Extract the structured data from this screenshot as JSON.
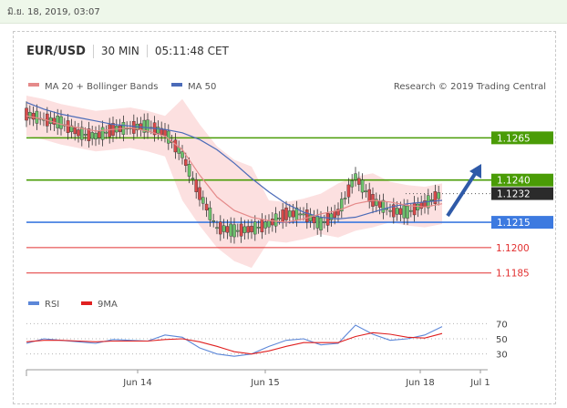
{
  "top_date": "มิ.ย. 18, 2019, 03:07",
  "header": {
    "symbol": "EUR/USD",
    "interval": "30 MIN",
    "time": "05:11:48 CET"
  },
  "legend": {
    "ma": "MA 20 + Bollinger Bands",
    "ma50": "MA 50",
    "credit": "Research © 2019 Trading Central"
  },
  "colors": {
    "green": "#4a9c06",
    "blue": "#3d7ae0",
    "red": "#e23030",
    "dark": "#2b2b2b",
    "ma50": "#4b6bb8",
    "ma20": "#e58a8a",
    "band": "#fbdada",
    "arrow": "#2f5aa8"
  },
  "levels": [
    {
      "value": 1.1265,
      "label": "1.1265",
      "kind": "green"
    },
    {
      "value": 1.124,
      "label": "1.1240",
      "kind": "green"
    },
    {
      "value": 1.1232,
      "label": "1.1232",
      "kind": "dark"
    },
    {
      "value": 1.1215,
      "label": "1.1215",
      "kind": "blue"
    },
    {
      "value": 1.12,
      "label": "1.1200",
      "kind": "red"
    },
    {
      "value": 1.1185,
      "label": "1.1185",
      "kind": "red"
    }
  ],
  "chart_data": {
    "type": "line",
    "title": "EUR/USD",
    "x_ticks": [
      "Jun 14",
      "Jun 15",
      "Jun 18",
      "Jul 1"
    ],
    "price_ylim": [
      1.118,
      1.129
    ],
    "series": [
      {
        "name": "MA 50",
        "values": [
          1.1286,
          1.1282,
          1.1279,
          1.1277,
          1.1275,
          1.1273,
          1.1272,
          1.1271,
          1.127,
          1.1268,
          1.1264,
          1.1258,
          1.125,
          1.1241,
          1.1233,
          1.1226,
          1.1221,
          1.1218,
          1.1217,
          1.1218,
          1.1221,
          1.1224,
          1.1226,
          1.1227,
          1.1228
        ]
      },
      {
        "name": "MA 20 + Bollinger Bands",
        "values": [
          1.1278,
          1.1276,
          1.1273,
          1.1271,
          1.1269,
          1.127,
          1.1271,
          1.1269,
          1.1266,
          1.1258,
          1.1243,
          1.123,
          1.1222,
          1.1218,
          1.1216,
          1.1215,
          1.1217,
          1.122,
          1.1222,
          1.1226,
          1.1228,
          1.1227,
          1.1225,
          1.1224,
          1.1226
        ]
      }
    ],
    "price_close": [
      1.1279,
      1.1276,
      1.1274,
      1.1268,
      1.1266,
      1.127,
      1.1271,
      1.1272,
      1.1268,
      1.1255,
      1.1232,
      1.1212,
      1.121,
      1.1211,
      1.1214,
      1.122,
      1.122,
      1.1214,
      1.1221,
      1.1242,
      1.1228,
      1.1222,
      1.1221,
      1.1226,
      1.1232
    ],
    "rsi": {
      "ticks": [
        "70",
        "50",
        "30"
      ],
      "ylim": [
        20,
        80
      ],
      "legend": [
        "RSI",
        "9MA"
      ],
      "rsi_values": [
        44,
        50,
        48,
        46,
        44,
        49,
        48,
        47,
        55,
        52,
        38,
        30,
        27,
        30,
        40,
        48,
        50,
        42,
        44,
        68,
        56,
        48,
        50,
        55,
        66
      ],
      "ma_values": [
        46,
        48,
        48,
        47,
        46,
        47,
        47,
        47,
        49,
        50,
        46,
        40,
        33,
        30,
        34,
        40,
        45,
        45,
        45,
        53,
        58,
        56,
        52,
        51,
        57
      ]
    }
  }
}
